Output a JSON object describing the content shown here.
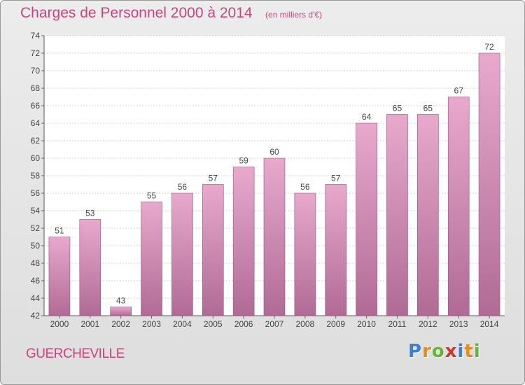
{
  "header": {
    "title": "Charges de Personnel 2000 à 2014",
    "subtitle": "(en milliers d'€)"
  },
  "footer": {
    "commune": "GUERCHEVILLE",
    "logo_letters": [
      "P",
      "r",
      "o",
      "x",
      "i",
      "t",
      "i"
    ],
    "logo_colors": [
      "#3a7fd1",
      "#e8891e",
      "#66b33a",
      "#d1332e",
      "#3a7fd1",
      "#e8891e",
      "#66b33a"
    ]
  },
  "colors": {
    "bar_top": "#e8a9cd",
    "bar_bottom": "#b06b95",
    "label": "#444444",
    "accent": "#c8457e"
  },
  "chart_data": {
    "type": "bar",
    "categories": [
      "2000",
      "2001",
      "2002",
      "2003",
      "2004",
      "2005",
      "2006",
      "2007",
      "2008",
      "2009",
      "2010",
      "2011",
      "2012",
      "2013",
      "2014"
    ],
    "values": [
      51,
      53,
      43,
      55,
      56,
      57,
      59,
      60,
      56,
      57,
      64,
      65,
      65,
      67,
      72
    ],
    "yticks": [
      42,
      44,
      46,
      48,
      50,
      52,
      54,
      56,
      58,
      60,
      62,
      64,
      66,
      68,
      70,
      72,
      74
    ],
    "ylim": [
      42,
      74
    ],
    "xlabel": "",
    "ylabel": "",
    "grid": true,
    "data_labels": true
  }
}
